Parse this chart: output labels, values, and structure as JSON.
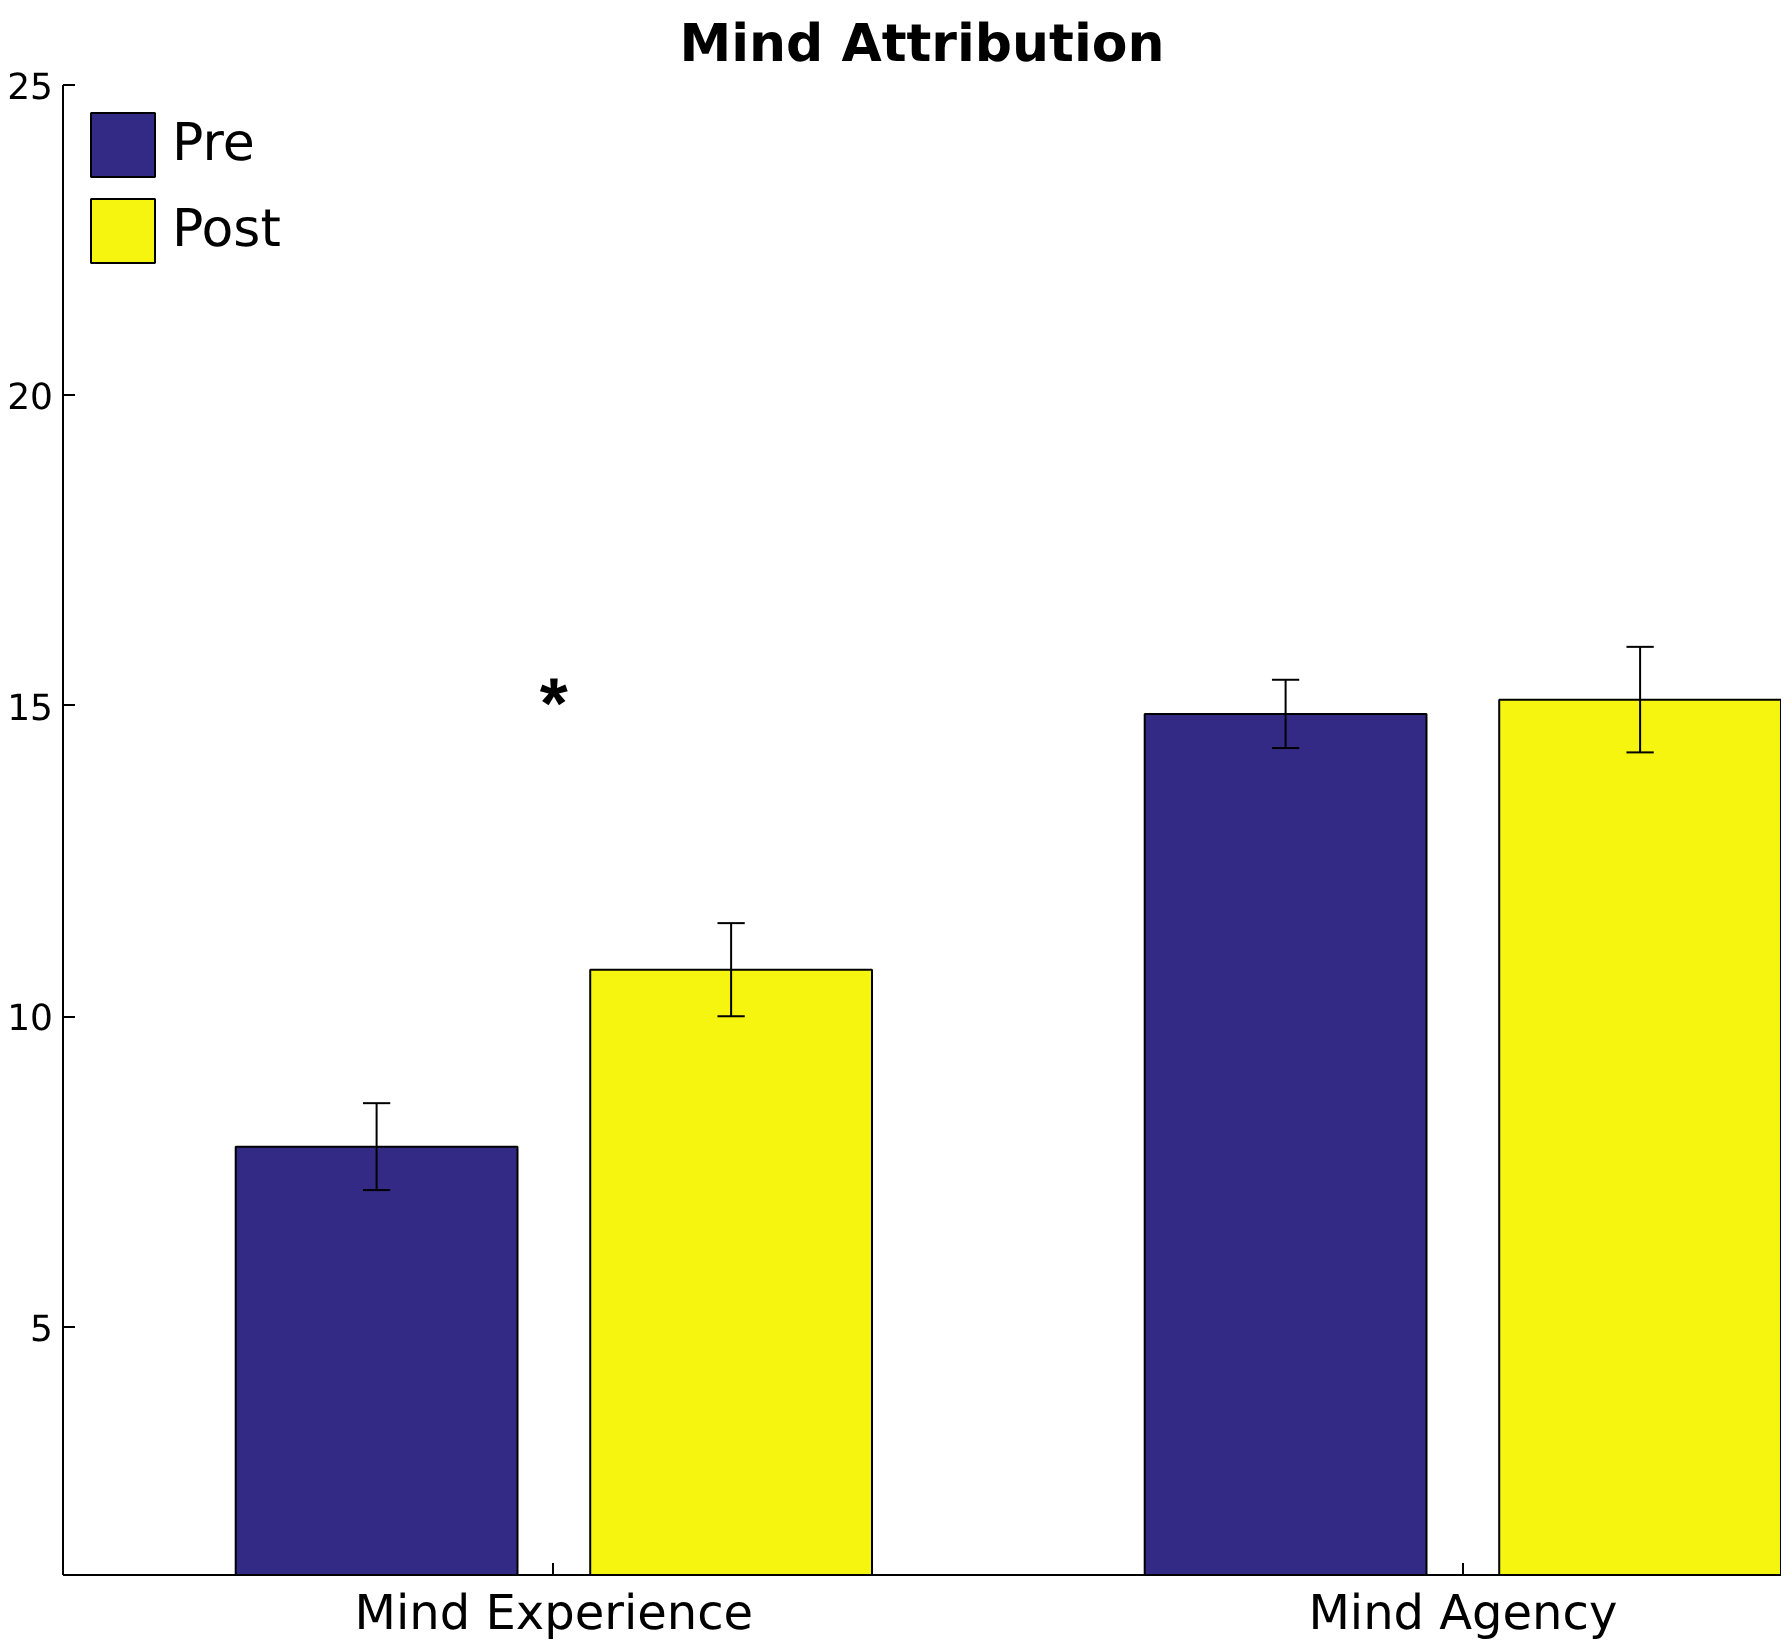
{
  "chart_data": {
    "type": "bar",
    "title": "Mind Attribution",
    "categories": [
      "Mind Experience",
      "Mind Agency"
    ],
    "series": [
      {
        "name": "Pre",
        "color": "#332a85",
        "values": [
          7.9,
          14.87
        ],
        "errors": [
          0.7,
          0.55
        ]
      },
      {
        "name": "Post",
        "color": "#f5f510",
        "values": [
          10.75,
          15.1
        ],
        "errors": [
          0.75,
          0.85
        ]
      }
    ],
    "ylim": [
      1,
      25
    ],
    "yticks": [
      5,
      10,
      15,
      20,
      25
    ],
    "grid": false,
    "legend": "top left",
    "annotations": [
      "*"
    ]
  }
}
